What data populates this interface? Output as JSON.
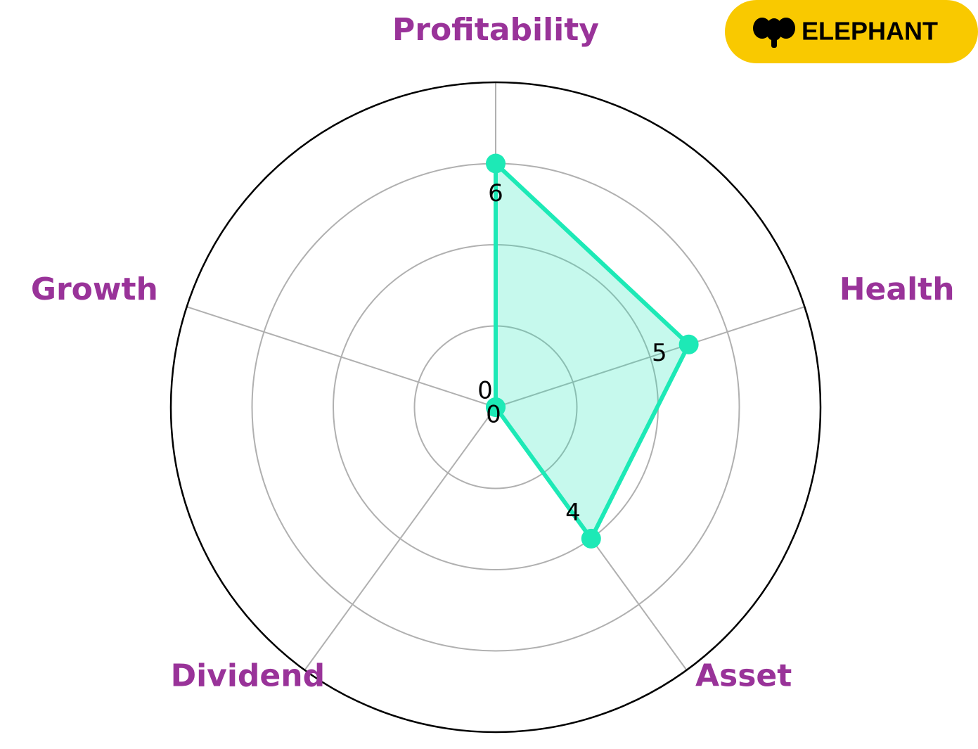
{
  "brand": "ELEPHANT",
  "chart_data": {
    "type": "radar",
    "categories": [
      "Profitability",
      "Health",
      "Asset",
      "Dividend",
      "Growth"
    ],
    "values": [
      6,
      5,
      4,
      0,
      0
    ],
    "color": "#1de9b6",
    "label_color": "#993399",
    "ylim": [
      0,
      8
    ],
    "yticks": [
      2,
      4,
      6
    ],
    "grid": true
  }
}
